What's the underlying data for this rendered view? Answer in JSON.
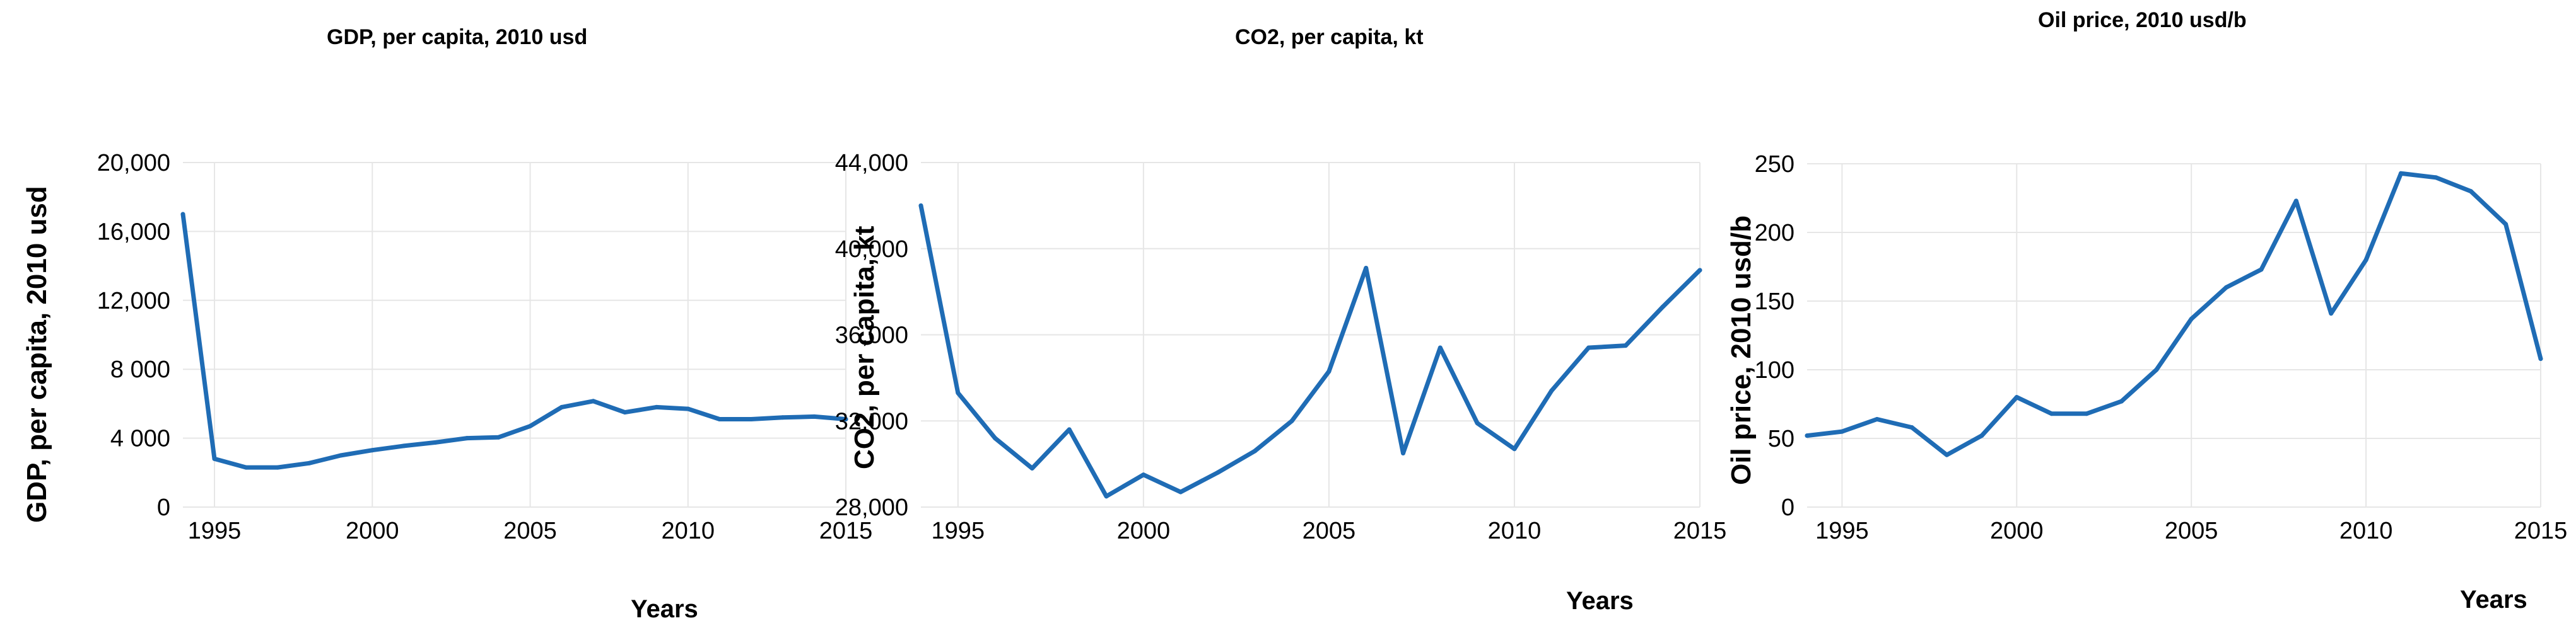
{
  "chart_data": [
    {
      "type": "line",
      "title": "GDP, per capita, 2010 usd",
      "xlabel": "Years",
      "ylabel": "GDP, per capita, 2010 usd",
      "xlim": [
        1994,
        2015
      ],
      "ylim": [
        0,
        20000
      ],
      "grid": true,
      "color": "#1f6cb5",
      "x_ticks": [
        1995,
        2000,
        2005,
        2010,
        2015
      ],
      "x_tick_labels": [
        "1995",
        "2000",
        "2005",
        "2010",
        "2015"
      ],
      "y_ticks": [
        0,
        4000,
        8000,
        12000,
        16000,
        20000
      ],
      "y_tick_labels": [
        "0",
        "4 000",
        "8 000",
        "12,000",
        "16,000",
        "20,000"
      ],
      "series": [
        {
          "name": "GDP per capita",
          "x": [
            1994,
            1995,
            1996,
            1997,
            1998,
            1999,
            2000,
            2001,
            2002,
            2003,
            2004,
            2005,
            2006,
            2007,
            2008,
            2009,
            2010,
            2011,
            2012,
            2013,
            2014,
            2015
          ],
          "values": [
            17000,
            2800,
            2300,
            2300,
            2550,
            3000,
            3300,
            3550,
            3750,
            4000,
            4050,
            4700,
            5800,
            6150,
            5500,
            5800,
            5700,
            5100,
            5100,
            5200,
            5250,
            5100
          ]
        }
      ]
    },
    {
      "type": "line",
      "title": "CO2, per capita, kt",
      "xlabel": "Years",
      "ylabel": "CO2, per capita, kt",
      "xlim": [
        1994,
        2015
      ],
      "ylim": [
        28000,
        44000
      ],
      "grid": true,
      "color": "#1f6cb5",
      "x_ticks": [
        1995,
        2000,
        2005,
        2010,
        2015
      ],
      "x_tick_labels": [
        "1995",
        "2000",
        "2005",
        "2010",
        "2015"
      ],
      "y_ticks": [
        28000,
        32000,
        36000,
        40000,
        44000
      ],
      "y_tick_labels": [
        "28,000",
        "32,000",
        "36,000",
        "40,000",
        "44,000"
      ],
      "series": [
        {
          "name": "CO2 per capita",
          "x": [
            1994,
            1995,
            1996,
            1997,
            1998,
            1999,
            2000,
            2001,
            2002,
            2003,
            2004,
            2005,
            2006,
            2007,
            2008,
            2009,
            2010,
            2011,
            2012,
            2013,
            2014,
            2015
          ],
          "values": [
            42000,
            33300,
            31200,
            29800,
            31600,
            28500,
            29500,
            28700,
            29600,
            30600,
            32000,
            34300,
            39100,
            30500,
            35400,
            31900,
            30700,
            33400,
            35400,
            35500,
            37300,
            39000
          ]
        }
      ]
    },
    {
      "type": "line",
      "title": "Oil price, 2010 usd/b",
      "xlabel": "Years",
      "ylabel": "Oil price, 2010 usd/b",
      "xlim": [
        1994,
        2015
      ],
      "ylim": [
        0,
        250
      ],
      "grid": true,
      "color": "#1f6cb5",
      "x_ticks": [
        1995,
        2000,
        2005,
        2010,
        2015
      ],
      "x_tick_labels": [
        "1995",
        "2000",
        "2005",
        "2010",
        "2015"
      ],
      "y_ticks": [
        0,
        50,
        100,
        150,
        200,
        250
      ],
      "y_tick_labels": [
        "0",
        "50",
        "100",
        "150",
        "200",
        "250"
      ],
      "series": [
        {
          "name": "Oil price",
          "x": [
            1994,
            1995,
            1996,
            1997,
            1998,
            1999,
            2000,
            2001,
            2002,
            2003,
            2004,
            2005,
            2006,
            2007,
            2008,
            2009,
            2010,
            2011,
            2012,
            2013,
            2014,
            2015
          ],
          "values": [
            52,
            55,
            64,
            58,
            38,
            52,
            80,
            68,
            68,
            77,
            100,
            137,
            160,
            173,
            223,
            141,
            180,
            243,
            240,
            230,
            206,
            108
          ]
        }
      ]
    }
  ]
}
